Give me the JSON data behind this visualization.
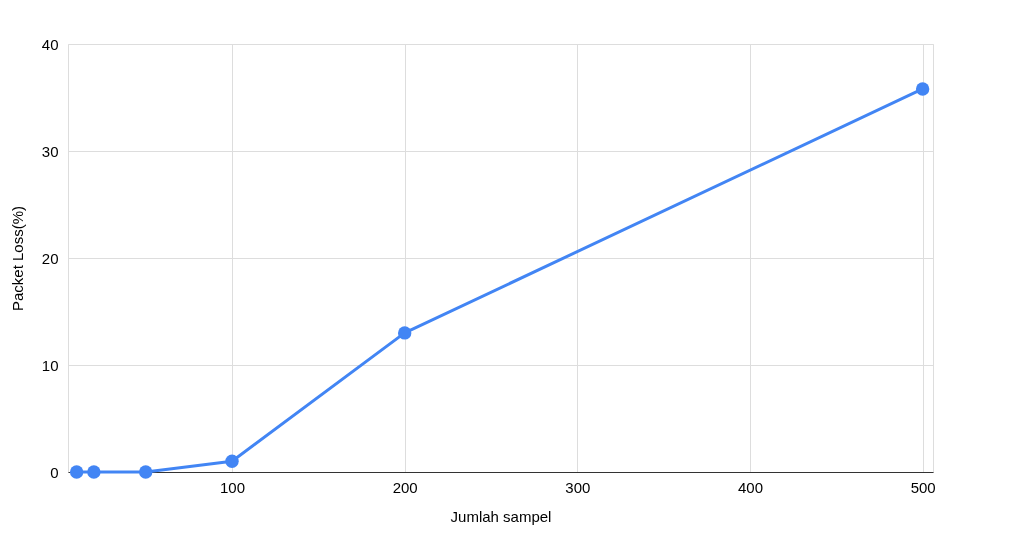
{
  "chart_data": {
    "type": "line",
    "xlabel": "Jumlah sampel",
    "ylabel": "Packet Loss(%)",
    "x": [
      10,
      20,
      50,
      100,
      200,
      500
    ],
    "series": [
      {
        "color": "#4285f4",
        "values": [
          0,
          0,
          0,
          1,
          13,
          35.8
        ]
      }
    ],
    "xlim": [
      5,
      506
    ],
    "xticks": [
      100,
      200,
      300,
      400,
      500
    ],
    "ylim": [
      0,
      40
    ],
    "yticks": [
      0,
      10,
      20,
      30,
      40
    ],
    "grid": true,
    "marker": "circle",
    "line_style": "solid"
  }
}
